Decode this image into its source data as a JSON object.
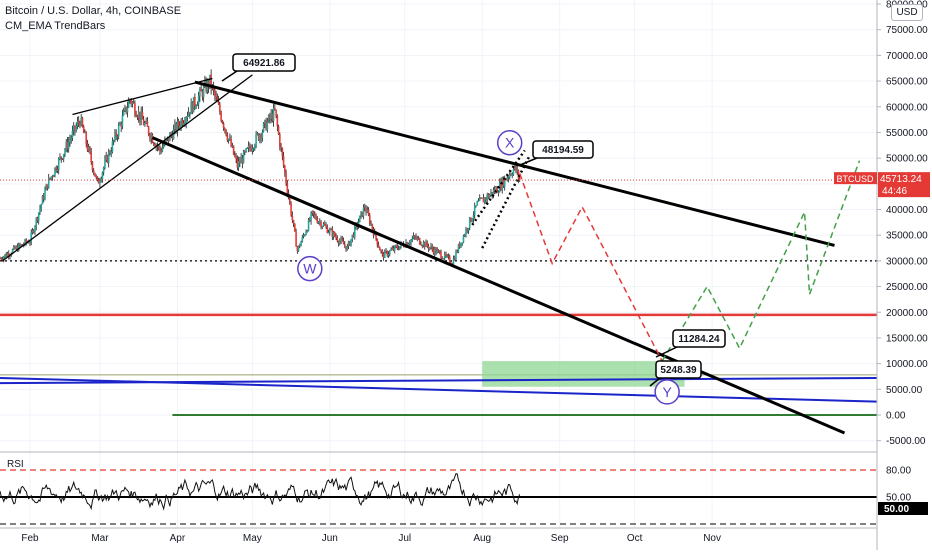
{
  "header": {
    "title": "Bitcoin / U.S. Dollar, 4h, COINBASE",
    "indicator": "CM_EMA TrendBars",
    "rsi_label": "RSI",
    "currency": "USD"
  },
  "colors": {
    "bull": "#26a69a",
    "bear": "#e53935",
    "trendline": "#000000",
    "support": "#e53935",
    "channel": "#1a24c9",
    "green_line": "#2e7d32",
    "projection_down": "#e53935",
    "projection_up": "#43a047",
    "zone": "#8fd694",
    "circle": "#5b3fc9",
    "price_tag": "#e53935"
  },
  "chart_data": [
    {
      "type": "candlestick",
      "title": "Bitcoin / U.S. Dollar, 4h, COINBASE",
      "symbol": "BTCUSD",
      "current_price": "45713.24",
      "countdown": "44:46",
      "x_tick_labels": [
        "Feb",
        "Mar",
        "Apr",
        "May",
        "Jun",
        "Jul",
        "Aug",
        "Sep",
        "Oct",
        "Nov"
      ],
      "y_tick_labels": [
        "80000.00",
        "75000.00",
        "70000.00",
        "65000.00",
        "60000.00",
        "55000.00",
        "50000.00",
        "45000.00",
        "40000.00",
        "35000.00",
        "30000.00",
        "25000.00",
        "20000.00",
        "15000.00",
        "10000.00",
        "5000.00",
        "0.00",
        "-5000.00"
      ],
      "ylim": [
        -7000,
        81000
      ],
      "price_path": [
        {
          "date": "2021-01-20",
          "price": 30500
        },
        {
          "date": "2021-02-01",
          "price": 34000
        },
        {
          "date": "2021-02-08",
          "price": 45000
        },
        {
          "date": "2021-02-21",
          "price": 57500
        },
        {
          "date": "2021-02-28",
          "price": 45000
        },
        {
          "date": "2021-03-13",
          "price": 61500
        },
        {
          "date": "2021-03-25",
          "price": 51500
        },
        {
          "date": "2021-04-14",
          "price": 64900
        },
        {
          "date": "2021-04-25",
          "price": 48500
        },
        {
          "date": "2021-05-10",
          "price": 59000
        },
        {
          "date": "2021-05-19",
          "price": 32000
        },
        {
          "date": "2021-05-25",
          "price": 39000
        },
        {
          "date": "2021-06-08",
          "price": 32500
        },
        {
          "date": "2021-06-15",
          "price": 40500
        },
        {
          "date": "2021-06-22",
          "price": 31000
        },
        {
          "date": "2021-07-05",
          "price": 34500
        },
        {
          "date": "2021-07-20",
          "price": 29800
        },
        {
          "date": "2021-07-30",
          "price": 41000
        },
        {
          "date": "2021-08-07",
          "price": 44000
        },
        {
          "date": "2021-08-14",
          "price": 48200
        },
        {
          "date": "2021-08-16",
          "price": 45713
        }
      ],
      "annotations": {
        "callouts": [
          "64921.86",
          "48194.59",
          "11284.24",
          "5248.39"
        ],
        "wave_labels": [
          "W",
          "X",
          "Y"
        ],
        "horizontal_levels": [
          30000,
          19500,
          7800,
          0
        ],
        "projection_down": [
          {
            "date": "2021-08-16",
            "price": 47000
          },
          {
            "date": "2021-08-29",
            "price": 29500
          },
          {
            "date": "2021-09-10",
            "price": 40500
          },
          {
            "date": "2021-10-12",
            "price": 10500
          }
        ],
        "projection_up": [
          {
            "date": "2021-10-12",
            "price": 10500
          },
          {
            "date": "2021-10-30",
            "price": 25000
          },
          {
            "date": "2021-11-12",
            "price": 13000
          },
          {
            "date": "2021-12-08",
            "price": 39500
          },
          {
            "date": "2021-12-10",
            "price": 23500
          },
          {
            "date": "2021-12-30",
            "price": 49500
          }
        ]
      }
    },
    {
      "type": "line",
      "title": "RSI",
      "y_tick_labels": [
        "80.00",
        "50.00"
      ],
      "current_value": "50.00",
      "ylim": [
        15,
        95
      ],
      "levels": [
        80,
        50,
        20
      ]
    }
  ]
}
